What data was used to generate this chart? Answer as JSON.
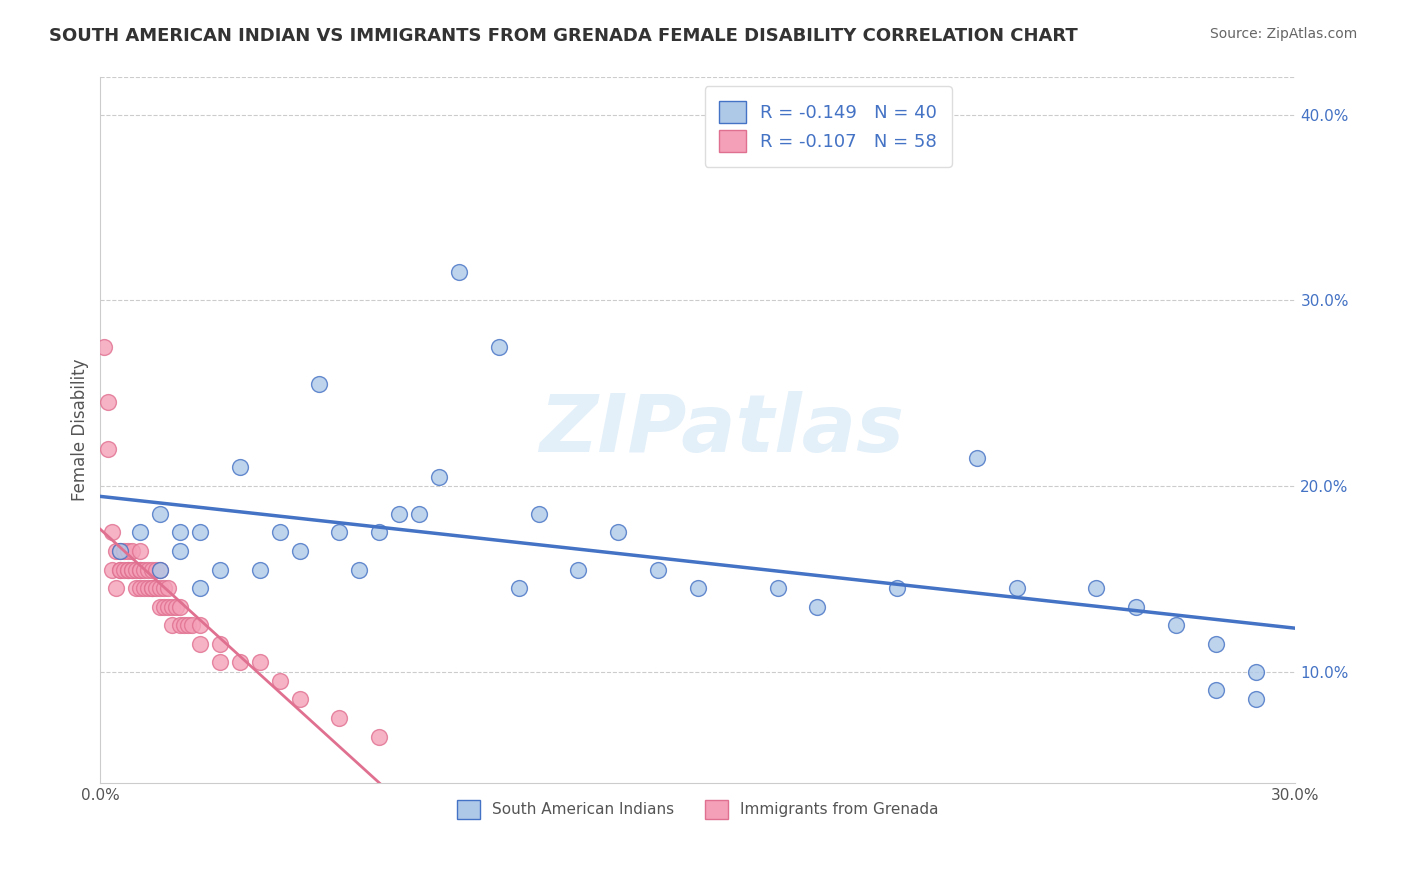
{
  "title": "SOUTH AMERICAN INDIAN VS IMMIGRANTS FROM GRENADA FEMALE DISABILITY CORRELATION CHART",
  "source": "Source: ZipAtlas.com",
  "ylabel": "Female Disability",
  "xlim": [
    0.0,
    0.3
  ],
  "ylim": [
    0.04,
    0.42
  ],
  "xticks": [
    0.0,
    0.05,
    0.1,
    0.15,
    0.2,
    0.25,
    0.3
  ],
  "xtick_labels": [
    "0.0%",
    "",
    "",
    "",
    "",
    "",
    "30.0%"
  ],
  "yticks": [
    0.1,
    0.2,
    0.3,
    0.4
  ],
  "ytick_labels_right": [
    "10.0%",
    "20.0%",
    "30.0%",
    "40.0%"
  ],
  "series1_fill": "#aec9e8",
  "series1_edge": "#4472c4",
  "series2_fill": "#f4a0b8",
  "series2_edge": "#e07090",
  "trend1_color": "#4472c4",
  "trend2_solid_color": "#e07090",
  "trend2_dash_color": "#f0b0c0",
  "watermark": "ZIPatlas",
  "series1_name": "South American Indians",
  "series2_name": "Immigrants from Grenada",
  "legend1_label": "R = -0.149   N = 40",
  "legend2_label": "R = -0.107   N = 58",
  "blue_scatter_x": [
    0.005,
    0.01,
    0.015,
    0.015,
    0.02,
    0.02,
    0.025,
    0.025,
    0.03,
    0.035,
    0.04,
    0.045,
    0.05,
    0.055,
    0.06,
    0.065,
    0.07,
    0.075,
    0.08,
    0.085,
    0.09,
    0.1,
    0.105,
    0.11,
    0.12,
    0.13,
    0.14,
    0.15,
    0.17,
    0.18,
    0.2,
    0.22,
    0.23,
    0.25,
    0.26,
    0.27,
    0.28,
    0.28,
    0.29,
    0.29
  ],
  "blue_scatter_y": [
    0.165,
    0.175,
    0.155,
    0.185,
    0.165,
    0.175,
    0.145,
    0.175,
    0.155,
    0.21,
    0.155,
    0.175,
    0.165,
    0.255,
    0.175,
    0.155,
    0.175,
    0.185,
    0.185,
    0.205,
    0.315,
    0.275,
    0.145,
    0.185,
    0.155,
    0.175,
    0.155,
    0.145,
    0.145,
    0.135,
    0.145,
    0.215,
    0.145,
    0.145,
    0.135,
    0.125,
    0.09,
    0.115,
    0.1,
    0.085
  ],
  "pink_scatter_x": [
    0.001,
    0.002,
    0.002,
    0.003,
    0.003,
    0.004,
    0.004,
    0.005,
    0.005,
    0.005,
    0.006,
    0.006,
    0.007,
    0.007,
    0.007,
    0.008,
    0.008,
    0.008,
    0.009,
    0.009,
    0.01,
    0.01,
    0.01,
    0.01,
    0.011,
    0.011,
    0.012,
    0.012,
    0.013,
    0.013,
    0.013,
    0.014,
    0.014,
    0.015,
    0.015,
    0.015,
    0.016,
    0.016,
    0.017,
    0.017,
    0.018,
    0.018,
    0.019,
    0.02,
    0.02,
    0.021,
    0.022,
    0.023,
    0.025,
    0.025,
    0.03,
    0.03,
    0.035,
    0.04,
    0.045,
    0.05,
    0.06,
    0.07
  ],
  "pink_scatter_y": [
    0.275,
    0.245,
    0.22,
    0.175,
    0.155,
    0.165,
    0.145,
    0.155,
    0.165,
    0.155,
    0.155,
    0.165,
    0.155,
    0.165,
    0.155,
    0.155,
    0.165,
    0.155,
    0.155,
    0.145,
    0.155,
    0.145,
    0.155,
    0.165,
    0.145,
    0.155,
    0.145,
    0.155,
    0.145,
    0.155,
    0.145,
    0.145,
    0.155,
    0.145,
    0.155,
    0.135,
    0.135,
    0.145,
    0.135,
    0.145,
    0.135,
    0.125,
    0.135,
    0.125,
    0.135,
    0.125,
    0.125,
    0.125,
    0.115,
    0.125,
    0.115,
    0.105,
    0.105,
    0.105,
    0.095,
    0.085,
    0.075,
    0.065
  ]
}
